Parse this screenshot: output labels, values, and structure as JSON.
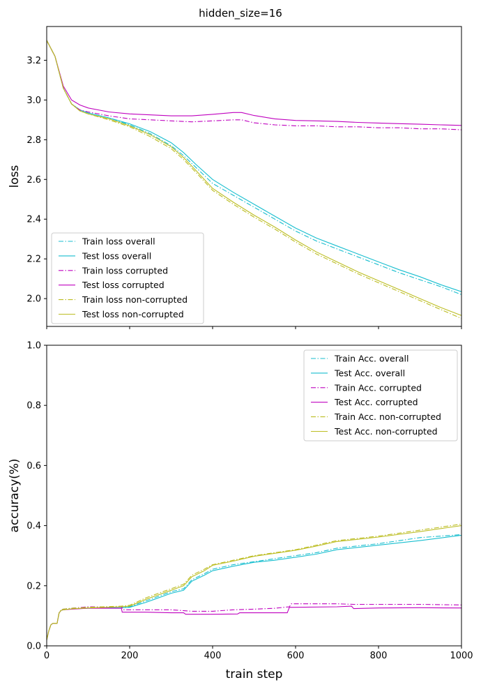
{
  "figure": {
    "title": "hidden_size=16"
  },
  "chart_data": [
    {
      "type": "line",
      "title": "",
      "xlabel": "",
      "ylabel": "loss",
      "xlim": [
        0,
        1000
      ],
      "ylim": [
        1.86,
        3.37
      ],
      "xticks": [
        0,
        200,
        400,
        600,
        800,
        1000
      ],
      "yticks": [
        2.0,
        2.2,
        2.4,
        2.6,
        2.8,
        3.0,
        3.2
      ],
      "ytick_labels": [
        "2.0",
        "2.2",
        "2.4",
        "2.6",
        "2.8",
        "3.0",
        "3.2"
      ],
      "show_xtick_labels": false,
      "legend_position": "lower-left",
      "series": [
        {
          "name": "Train loss overall",
          "color": "#17becf",
          "style": "dashdot",
          "x": [
            0,
            20,
            40,
            60,
            80,
            100,
            150,
            200,
            250,
            300,
            330,
            360,
            400,
            450,
            500,
            550,
            600,
            650,
            700,
            750,
            800,
            850,
            900,
            950,
            1000
          ],
          "y": [
            3.3,
            3.22,
            3.06,
            2.98,
            2.95,
            2.935,
            2.91,
            2.875,
            2.83,
            2.77,
            2.72,
            2.66,
            2.58,
            2.52,
            2.46,
            2.4,
            2.34,
            2.29,
            2.25,
            2.21,
            2.17,
            2.13,
            2.095,
            2.06,
            2.02
          ]
        },
        {
          "name": "Test loss overall",
          "color": "#17becf",
          "style": "solid",
          "x": [
            0,
            20,
            40,
            60,
            80,
            100,
            150,
            200,
            250,
            300,
            330,
            360,
            400,
            450,
            500,
            550,
            600,
            650,
            700,
            750,
            800,
            850,
            900,
            950,
            1000
          ],
          "y": [
            3.3,
            3.22,
            3.06,
            2.98,
            2.95,
            2.935,
            2.91,
            2.88,
            2.84,
            2.785,
            2.735,
            2.675,
            2.6,
            2.535,
            2.475,
            2.415,
            2.355,
            2.305,
            2.265,
            2.225,
            2.185,
            2.145,
            2.11,
            2.07,
            2.035
          ]
        },
        {
          "name": "Train loss corrupted",
          "color": "#bf00bf",
          "style": "dashdot",
          "x": [
            0,
            20,
            40,
            60,
            80,
            100,
            150,
            200,
            250,
            300,
            350,
            400,
            450,
            470,
            500,
            550,
            600,
            650,
            700,
            750,
            800,
            850,
            900,
            950,
            1000
          ],
          "y": [
            3.3,
            3.22,
            3.06,
            2.98,
            2.95,
            2.94,
            2.92,
            2.905,
            2.9,
            2.895,
            2.89,
            2.895,
            2.9,
            2.9,
            2.885,
            2.875,
            2.87,
            2.87,
            2.865,
            2.865,
            2.86,
            2.86,
            2.855,
            2.855,
            2.85
          ]
        },
        {
          "name": "Test loss corrupted",
          "color": "#bf00bf",
          "style": "solid",
          "x": [
            0,
            20,
            40,
            60,
            80,
            100,
            150,
            200,
            250,
            300,
            350,
            400,
            450,
            470,
            500,
            550,
            600,
            650,
            700,
            750,
            800,
            850,
            900,
            950,
            1000
          ],
          "y": [
            3.3,
            3.22,
            3.07,
            3.0,
            2.975,
            2.96,
            2.94,
            2.93,
            2.925,
            2.92,
            2.92,
            2.928,
            2.937,
            2.937,
            2.922,
            2.905,
            2.897,
            2.895,
            2.892,
            2.887,
            2.884,
            2.881,
            2.878,
            2.875,
            2.872
          ]
        },
        {
          "name": "Train loss non-corrupted",
          "color": "#bcbd22",
          "style": "dashdot",
          "x": [
            0,
            20,
            40,
            60,
            80,
            100,
            150,
            200,
            250,
            300,
            330,
            360,
            400,
            450,
            500,
            550,
            600,
            650,
            700,
            750,
            800,
            850,
            900,
            950,
            1000
          ],
          "y": [
            3.3,
            3.22,
            3.06,
            2.98,
            2.945,
            2.93,
            2.9,
            2.865,
            2.815,
            2.755,
            2.7,
            2.635,
            2.545,
            2.475,
            2.41,
            2.35,
            2.285,
            2.225,
            2.175,
            2.125,
            2.08,
            2.035,
            1.99,
            1.945,
            1.9
          ]
        },
        {
          "name": "Test loss non-corrupted",
          "color": "#bcbd22",
          "style": "solid",
          "x": [
            0,
            20,
            40,
            60,
            80,
            100,
            150,
            200,
            250,
            300,
            330,
            360,
            400,
            450,
            500,
            550,
            600,
            650,
            700,
            750,
            800,
            850,
            900,
            950,
            1000
          ],
          "y": [
            3.3,
            3.22,
            3.06,
            2.98,
            2.945,
            2.93,
            2.905,
            2.87,
            2.825,
            2.765,
            2.71,
            2.645,
            2.555,
            2.485,
            2.42,
            2.36,
            2.295,
            2.235,
            2.185,
            2.135,
            2.09,
            2.045,
            2.0,
            1.955,
            1.915
          ]
        }
      ]
    },
    {
      "type": "line",
      "title": "",
      "xlabel": "train step",
      "ylabel": "accuracy(%)",
      "xlim": [
        0,
        1000
      ],
      "ylim": [
        0.0,
        1.0
      ],
      "xticks": [
        0,
        200,
        400,
        600,
        800,
        1000
      ],
      "xtick_labels": [
        "0",
        "200",
        "400",
        "600",
        "800",
        "1000"
      ],
      "yticks": [
        0.0,
        0.2,
        0.4,
        0.6,
        0.8,
        1.0
      ],
      "ytick_labels": [
        "0.0",
        "0.2",
        "0.4",
        "0.6",
        "0.8",
        "1.0"
      ],
      "show_xtick_labels": true,
      "legend_position": "upper-right",
      "series": [
        {
          "name": "Train Acc. overall",
          "color": "#17becf",
          "style": "dashdot",
          "x": [
            0,
            5,
            10,
            15,
            25,
            30,
            35,
            40,
            60,
            100,
            180,
            200,
            240,
            260,
            300,
            330,
            350,
            380,
            400,
            450,
            500,
            550,
            600,
            650,
            700,
            800,
            900,
            1000
          ],
          "y": [
            0.02,
            0.05,
            0.07,
            0.075,
            0.075,
            0.11,
            0.12,
            0.122,
            0.125,
            0.128,
            0.13,
            0.13,
            0.15,
            0.16,
            0.18,
            0.19,
            0.22,
            0.24,
            0.255,
            0.27,
            0.28,
            0.29,
            0.3,
            0.31,
            0.325,
            0.34,
            0.36,
            0.37
          ]
        },
        {
          "name": "Test Acc. overall",
          "color": "#17becf",
          "style": "solid",
          "x": [
            0,
            5,
            10,
            15,
            25,
            30,
            35,
            40,
            60,
            100,
            180,
            200,
            240,
            260,
            300,
            330,
            350,
            380,
            400,
            450,
            500,
            550,
            600,
            650,
            700,
            800,
            900,
            1000
          ],
          "y": [
            0.02,
            0.05,
            0.07,
            0.075,
            0.075,
            0.11,
            0.118,
            0.12,
            0.123,
            0.125,
            0.127,
            0.128,
            0.145,
            0.155,
            0.175,
            0.185,
            0.215,
            0.235,
            0.25,
            0.265,
            0.278,
            0.285,
            0.295,
            0.305,
            0.32,
            0.335,
            0.35,
            0.368
          ]
        },
        {
          "name": "Train Acc. corrupted",
          "color": "#bf00bf",
          "style": "dashdot",
          "x": [
            0,
            5,
            10,
            15,
            25,
            30,
            35,
            40,
            60,
            100,
            180,
            185,
            250,
            300,
            350,
            400,
            450,
            500,
            550,
            585,
            590,
            650,
            700,
            740,
            800,
            900,
            1000
          ],
          "y": [
            0.02,
            0.05,
            0.07,
            0.075,
            0.075,
            0.11,
            0.12,
            0.122,
            0.125,
            0.13,
            0.13,
            0.12,
            0.12,
            0.12,
            0.115,
            0.115,
            0.12,
            0.122,
            0.125,
            0.13,
            0.14,
            0.14,
            0.14,
            0.138,
            0.138,
            0.138,
            0.136
          ]
        },
        {
          "name": "Test Acc. corrupted",
          "color": "#bf00bf",
          "style": "solid",
          "x": [
            0,
            5,
            10,
            15,
            25,
            30,
            35,
            40,
            60,
            100,
            180,
            182,
            240,
            300,
            330,
            335,
            400,
            460,
            465,
            580,
            585,
            700,
            735,
            740,
            800,
            900,
            1000
          ],
          "y": [
            0.02,
            0.05,
            0.07,
            0.075,
            0.075,
            0.11,
            0.118,
            0.12,
            0.122,
            0.125,
            0.125,
            0.112,
            0.112,
            0.11,
            0.11,
            0.105,
            0.105,
            0.106,
            0.11,
            0.11,
            0.128,
            0.13,
            0.132,
            0.124,
            0.126,
            0.127,
            0.126
          ]
        },
        {
          "name": "Train Acc. non-corrupted",
          "color": "#bcbd22",
          "style": "dashdot",
          "x": [
            0,
            5,
            10,
            15,
            25,
            30,
            35,
            40,
            60,
            100,
            180,
            200,
            240,
            260,
            300,
            330,
            350,
            380,
            400,
            450,
            500,
            550,
            600,
            650,
            700,
            800,
            900,
            1000
          ],
          "y": [
            0.02,
            0.05,
            0.07,
            0.075,
            0.075,
            0.11,
            0.12,
            0.122,
            0.125,
            0.128,
            0.132,
            0.135,
            0.16,
            0.17,
            0.19,
            0.205,
            0.235,
            0.255,
            0.27,
            0.285,
            0.3,
            0.31,
            0.32,
            0.335,
            0.35,
            0.365,
            0.385,
            0.405
          ]
        },
        {
          "name": "Test Acc. non-corrupted",
          "color": "#bcbd22",
          "style": "solid",
          "x": [
            0,
            5,
            10,
            15,
            25,
            30,
            35,
            40,
            60,
            100,
            180,
            200,
            240,
            260,
            300,
            330,
            350,
            380,
            400,
            450,
            500,
            550,
            600,
            650,
            700,
            800,
            900,
            1000
          ],
          "y": [
            0.02,
            0.05,
            0.07,
            0.075,
            0.075,
            0.11,
            0.118,
            0.12,
            0.123,
            0.126,
            0.13,
            0.132,
            0.155,
            0.165,
            0.185,
            0.2,
            0.23,
            0.25,
            0.268,
            0.282,
            0.298,
            0.308,
            0.318,
            0.332,
            0.347,
            0.362,
            0.38,
            0.4
          ]
        }
      ]
    }
  ]
}
